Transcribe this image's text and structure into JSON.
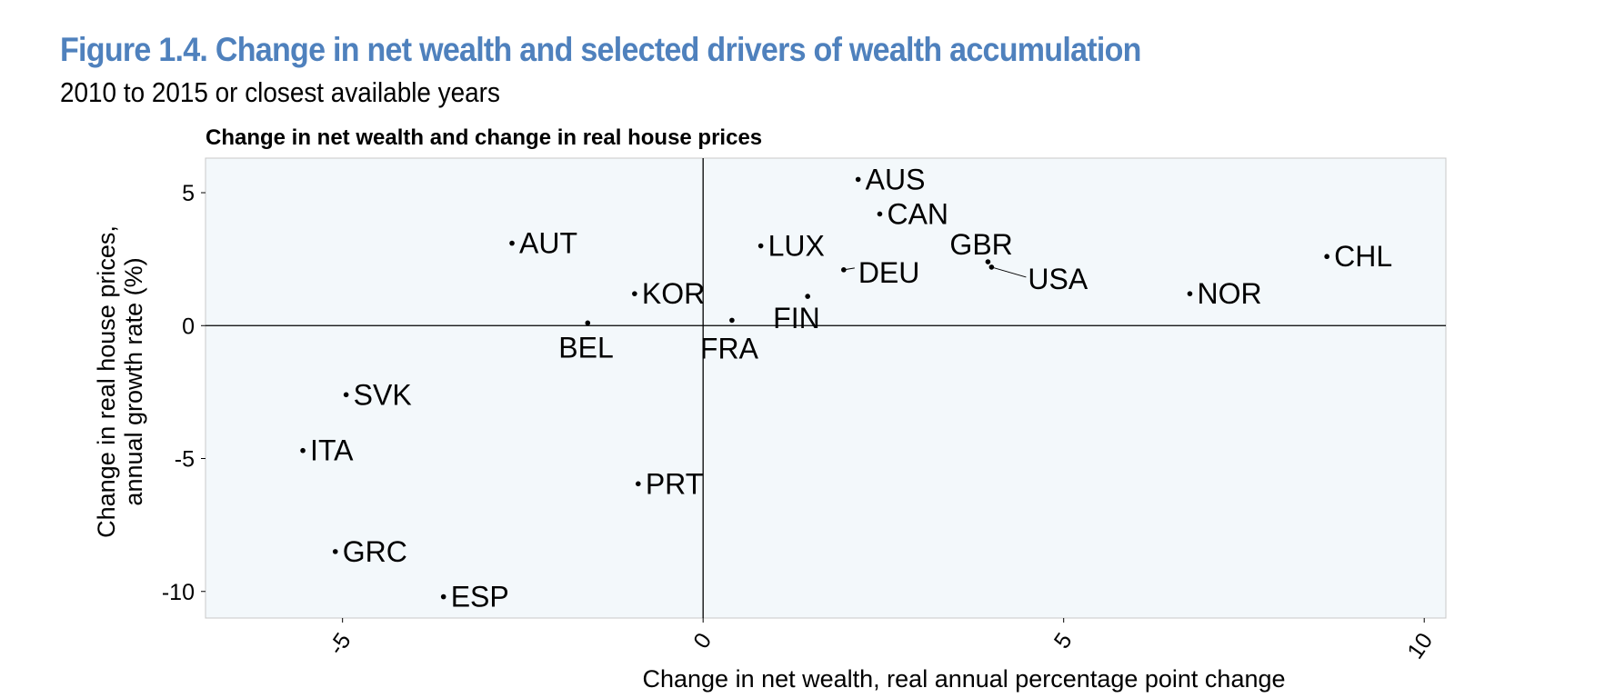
{
  "figure": {
    "title": "Figure 1.4. Change in net wealth and selected drivers of wealth accumulation",
    "subtitle": "2010 to 2015 or closest available years"
  },
  "chart_data": {
    "type": "scatter",
    "title": "Change in net wealth and change in real house prices",
    "xlabel": "Change in net wealth, real annual percentage point change",
    "ylabel_lines": [
      "Change in real house prices,",
      "annual growth rate (%)"
    ],
    "xlim": [
      -6.9,
      10.3
    ],
    "ylim": [
      -11.0,
      6.3
    ],
    "xticks": [
      -5,
      0,
      5,
      10
    ],
    "yticks": [
      5,
      0,
      -5,
      -10
    ],
    "reference_lines": {
      "x": 0,
      "y": 0
    },
    "grid": false,
    "colors": {
      "plot_background": "#f3f8fb",
      "marker": "#000000",
      "title": "#4f81bd"
    },
    "points": [
      {
        "label": "AUS",
        "x": 2.15,
        "y": 5.5
      },
      {
        "label": "CAN",
        "x": 2.45,
        "y": 4.2
      },
      {
        "label": "AUT",
        "x": -2.65,
        "y": 3.1
      },
      {
        "label": "LUX",
        "x": 0.8,
        "y": 3.0
      },
      {
        "label": "GBR",
        "x": 3.95,
        "y": 2.4
      },
      {
        "label": "USA",
        "x": 4.0,
        "y": 2.2
      },
      {
        "label": "DEU",
        "x": 1.95,
        "y": 2.1
      },
      {
        "label": "CHL",
        "x": 8.65,
        "y": 2.6
      },
      {
        "label": "KOR",
        "x": -0.95,
        "y": 1.2
      },
      {
        "label": "NOR",
        "x": 6.75,
        "y": 1.2
      },
      {
        "label": "FIN",
        "x": 1.45,
        "y": 1.1
      },
      {
        "label": "FRA",
        "x": 0.4,
        "y": 0.2
      },
      {
        "label": "BEL",
        "x": -1.6,
        "y": 0.1
      },
      {
        "label": "SVK",
        "x": -4.95,
        "y": -2.6
      },
      {
        "label": "ITA",
        "x": -5.55,
        "y": -4.7
      },
      {
        "label": "PRT",
        "x": -0.9,
        "y": -5.95
      },
      {
        "label": "GRC",
        "x": -5.1,
        "y": -8.5
      },
      {
        "label": "ESP",
        "x": -3.6,
        "y": -10.2
      }
    ]
  }
}
